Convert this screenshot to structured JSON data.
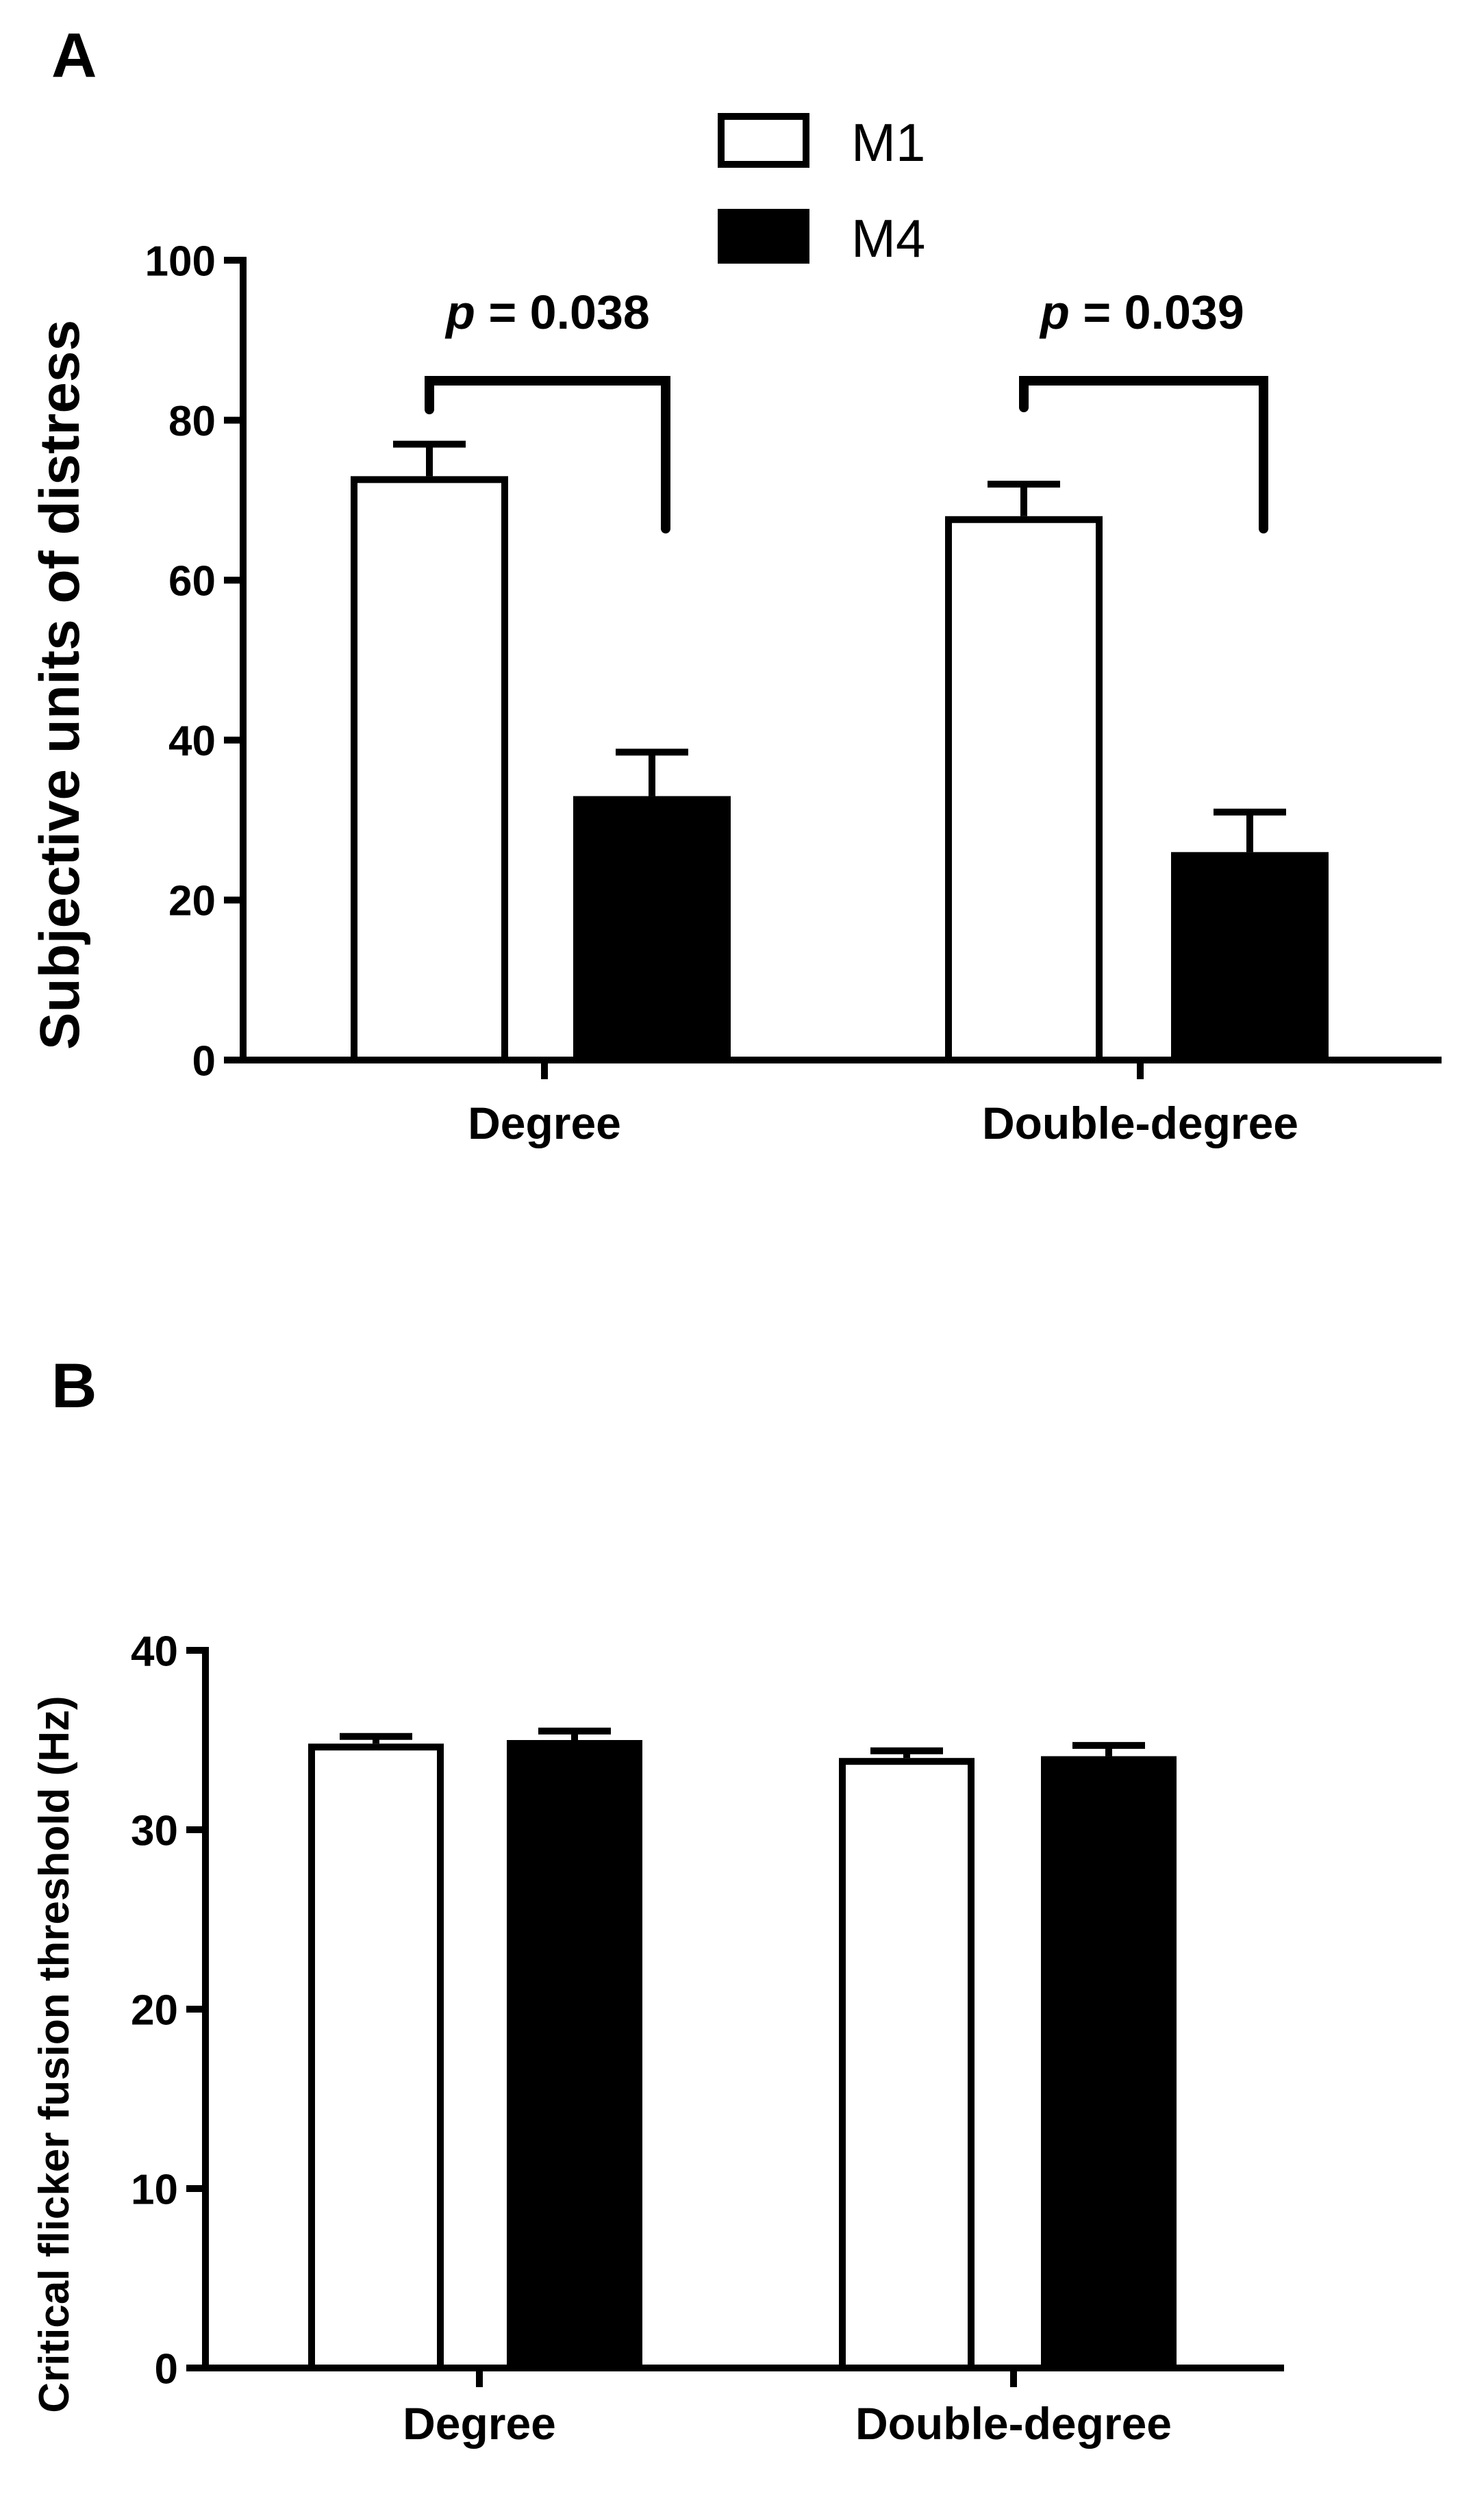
{
  "chart_data": [
    {
      "type": "bar",
      "panel_label": "A",
      "title": "",
      "xlabel": "",
      "ylabel": "Subjective units of distress",
      "categories": [
        "Degree",
        "Double-degree"
      ],
      "series": [
        {
          "name": "M1",
          "values": [
            73,
            68
          ],
          "errors": [
            4,
            4
          ],
          "color": "#ffffff"
        },
        {
          "name": "M4",
          "values": [
            33,
            26
          ],
          "errors": [
            5.5,
            5
          ],
          "color": "#000000"
        }
      ],
      "ylim": [
        0,
        100
      ],
      "yticks": [
        "0",
        "20",
        "40",
        "60",
        "80",
        "100"
      ],
      "grid": false,
      "legend": {
        "placement": "top-center",
        "entries": [
          "M1",
          "M4"
        ]
      },
      "annotations": [
        {
          "category": "Degree",
          "text_prefix": "p",
          "text_value": " = 0.038"
        },
        {
          "category": "Double-degree",
          "text_prefix": "p",
          "text_value": " = 0.039"
        }
      ]
    },
    {
      "type": "bar",
      "panel_label": "B",
      "title": "",
      "xlabel": "",
      "ylabel": "Critical flicker  fusion threshold (Hz)",
      "categories": [
        "Degree",
        "Double-degree"
      ],
      "series": [
        {
          "name": "M1",
          "values": [
            34.8,
            34.0
          ],
          "errors": [
            0.4,
            0.4
          ],
          "color": "#ffffff"
        },
        {
          "name": "M4",
          "values": [
            35.0,
            34.1
          ],
          "errors": [
            0.5,
            0.6
          ],
          "color": "#000000"
        }
      ],
      "ylim": [
        0,
        40
      ],
      "yticks": [
        "0",
        "10",
        "20",
        "30",
        "40"
      ],
      "grid": false
    }
  ]
}
